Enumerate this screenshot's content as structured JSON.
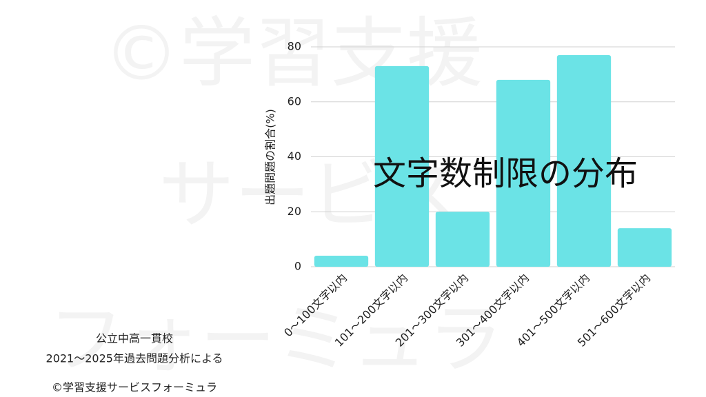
{
  "chart_data": {
    "type": "bar",
    "title": "文字数制限の分布",
    "y_label": "出題問題の割合(%)",
    "categories": [
      "0～100文字以内",
      "101～200文字以内",
      "201～300文字以内",
      "301～400文字以内",
      "401～500文字以内",
      "501～600文字以内"
    ],
    "values": [
      4,
      73,
      20,
      68,
      77,
      14
    ],
    "color": "#6be3e6",
    "ylim": [
      0,
      80
    ],
    "yticks": [
      0,
      20,
      40,
      60,
      80
    ],
    "grid": true,
    "notes": [
      "公立中高一貫校",
      "2021～2025年過去問題分析による"
    ],
    "credit": "©学習支援サービスフォーミュラ",
    "watermark": [
      "©学習支援",
      "サービス",
      "フォーミュラ"
    ]
  }
}
